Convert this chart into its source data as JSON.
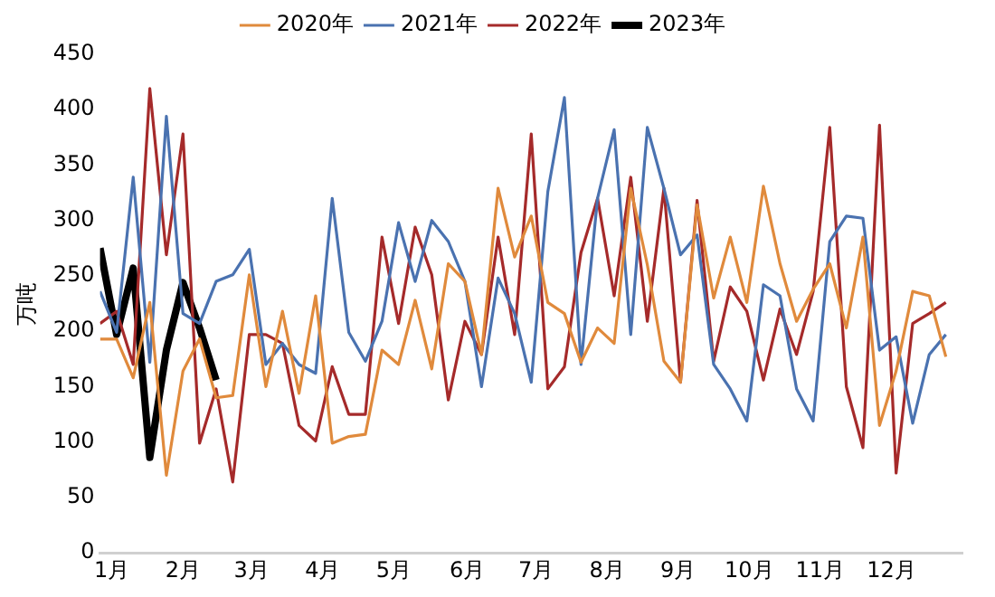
{
  "chart_data": {
    "type": "line",
    "ylabel": "万吨",
    "x": [
      "--01-01",
      "--01-08",
      "--01-15",
      "--01-22",
      "--01-29",
      "--02-05",
      "--02-12",
      "--02-19",
      "--02-26",
      "--03-05",
      "--03-12",
      "--03-19",
      "--03-26",
      "--04-02",
      "--04-09",
      "--04-16",
      "--04-23",
      "--04-30",
      "--05-07",
      "--05-14",
      "--05-21",
      "--05-28",
      "--06-04",
      "--06-11",
      "--06-18",
      "--06-25",
      "--07-02",
      "--07-09",
      "--07-16",
      "--07-23",
      "--07-30",
      "--08-06",
      "--08-13",
      "--08-20",
      "--08-27",
      "--09-03",
      "--09-10",
      "--09-17",
      "--09-24",
      "--10-01",
      "--10-08",
      "--10-15",
      "--10-22",
      "--10-29",
      "--11-05",
      "--11-12",
      "--11-19",
      "--11-26",
      "--12-03",
      "--12-10",
      "--12-17",
      "--12-24"
    ],
    "xlim": [
      "--01-01",
      "--12-31"
    ],
    "xticks": [
      {
        "value": "--01-06",
        "label": "1月"
      },
      {
        "value": "--02-05",
        "label": "2月"
      },
      {
        "value": "--03-06",
        "label": "3月"
      },
      {
        "value": "--04-05",
        "label": "4月"
      },
      {
        "value": "--05-05",
        "label": "5月"
      },
      {
        "value": "--06-05",
        "label": "6月"
      },
      {
        "value": "--07-04",
        "label": "7月"
      },
      {
        "value": "--08-03",
        "label": "8月"
      },
      {
        "value": "--09-02",
        "label": "9月"
      },
      {
        "value": "--10-02",
        "label": "10月"
      },
      {
        "value": "--11-01",
        "label": "11月"
      },
      {
        "value": "--12-01",
        "label": "12月"
      }
    ],
    "ylim": [
      0,
      450
    ],
    "yticks": [
      0,
      50,
      100,
      150,
      200,
      250,
      300,
      350,
      400,
      450
    ],
    "grid": false,
    "legend": "top",
    "marker": "none",
    "line_style": "solid",
    "series": [
      {
        "name": "2020年",
        "color": "#e08a3c",
        "values": [
          193,
          193,
          158,
          226,
          70,
          164,
          193,
          140,
          142,
          251,
          150,
          218,
          144,
          232,
          99,
          105,
          107,
          183,
          170,
          228,
          166,
          261,
          245,
          179,
          329,
          267,
          304,
          226,
          216,
          172,
          203,
          189,
          329,
          260,
          173,
          154,
          314,
          230,
          285,
          226,
          331,
          261,
          209,
          238,
          261,
          203,
          285,
          115,
          164,
          236,
          232,
          177
        ]
      },
      {
        "name": "2021年",
        "color": "#4a72b0",
        "values": [
          236,
          199,
          339,
          172,
          394,
          216,
          207,
          245,
          251,
          274,
          170,
          189,
          170,
          162,
          320,
          199,
          173,
          209,
          298,
          245,
          300,
          281,
          245,
          150,
          248,
          216,
          154,
          326,
          411,
          170,
          320,
          382,
          197,
          384,
          329,
          269,
          287,
          170,
          148,
          119,
          242,
          232,
          148,
          119,
          281,
          304,
          302,
          183,
          195,
          117,
          179,
          197
        ]
      },
      {
        "name": "2022年",
        "color": "#a52a2a",
        "values": [
          207,
          218,
          170,
          419,
          269,
          378,
          99,
          148,
          64,
          197,
          197,
          189,
          115,
          101,
          168,
          125,
          125,
          285,
          207,
          294,
          251,
          138,
          209,
          179,
          285,
          197,
          378,
          148,
          168,
          271,
          320,
          232,
          339,
          209,
          329,
          154,
          318,
          173,
          240,
          218,
          156,
          220,
          179,
          236,
          384,
          150,
          95,
          386,
          72,
          207,
          216,
          226
        ]
      },
      {
        "name": "2023年",
        "color": "#000000",
        "x": [
          "--01-01",
          "--01-08",
          "--01-15",
          "--01-22",
          "--01-29",
          "--02-05",
          "--02-12",
          "--02-19"
        ],
        "values": [
          275,
          197,
          257,
          86,
          183,
          244,
          203,
          156
        ]
      }
    ]
  }
}
